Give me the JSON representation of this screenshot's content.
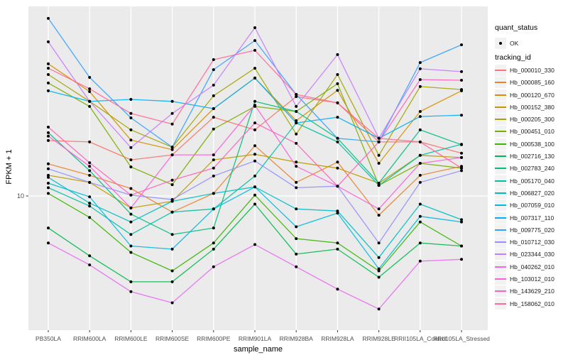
{
  "chart_data": {
    "type": "line",
    "title": "",
    "xlabel": "sample_name",
    "ylabel": "FPKM + 1",
    "y_scale": "log10",
    "y_tick_labels": [
      "10"
    ],
    "y_tick_values": [
      10
    ],
    "ylim_approx": [
      2.5,
      85
    ],
    "grid": "major-only",
    "legend_position": "right",
    "panel_bg": "#EBEBEB",
    "grid_color": "#FFFFFF",
    "point_color": "#000000",
    "categories": [
      "PB350LA",
      "RRIM600LA",
      "RRIM600LE",
      "RRIM600SE",
      "RRIM600PE",
      "RRIM901LA",
      "RRIM928BA",
      "RRIM928LA",
      "RRIM928LE",
      "RRII105LA_Control",
      "RRII105LA_Stressed"
    ],
    "series": [
      {
        "name": "Hb_000010_330",
        "color": "#F8766D",
        "values": [
          19.0,
          18.7,
          15.2,
          16.1,
          24.9,
          21.5,
          31.6,
          29.4,
          18.7,
          18.7,
          16.4
        ]
      },
      {
        "name": "Hb_000085_160",
        "color": "#EA8331",
        "values": [
          14.5,
          12.7,
          10.9,
          8.3,
          10.3,
          17.9,
          11.7,
          14.8,
          8.0,
          12.7,
          14.1
        ]
      },
      {
        "name": "Hb_000120_670",
        "color": "#D89000",
        "values": [
          46.2,
          33.5,
          19.1,
          17.1,
          27.5,
          39.2,
          23.9,
          34.0,
          14.6,
          26.6,
          33.8
        ]
      },
      {
        "name": "Hb_000152_380",
        "color": "#C09B00",
        "values": [
          12.7,
          11.7,
          8.7,
          9.4,
          15.2,
          16.2,
          14.8,
          13.8,
          11.6,
          16.0,
          15.6
        ]
      },
      {
        "name": "Hb_000205_300",
        "color": "#A3A500",
        "values": [
          40.8,
          29.9,
          21.5,
          17.6,
          31.9,
          43.9,
          20.5,
          40.8,
          16.0,
          35.5,
          34.3
        ]
      },
      {
        "name": "Hb_000451_010",
        "color": "#7CAE00",
        "values": [
          37.0,
          28.2,
          14.0,
          11.4,
          21.7,
          28.2,
          26.6,
          36.7,
          11.3,
          14.6,
          13.8
        ]
      },
      {
        "name": "Hb_000538_100",
        "color": "#39B600",
        "values": [
          10.3,
          7.8,
          5.2,
          4.2,
          5.8,
          10.1,
          6.1,
          5.8,
          4.2,
          7.4,
          5.6
        ]
      },
      {
        "name": "Hb_002716_130",
        "color": "#00BB4E",
        "values": [
          6.9,
          5.0,
          3.7,
          3.7,
          5.4,
          9.1,
          5.1,
          5.4,
          3.9,
          5.8,
          5.6
        ]
      },
      {
        "name": "Hb_002783_240",
        "color": "#00BF7D",
        "values": [
          20.8,
          13.4,
          8.1,
          6.4,
          6.9,
          29.9,
          26.6,
          19.5,
          11.6,
          21.5,
          18.1
        ]
      },
      {
        "name": "Hb_005170_040",
        "color": "#00C1A3",
        "values": [
          11.0,
          8.9,
          6.4,
          8.3,
          8.6,
          12.6,
          23.3,
          18.7,
          11.3,
          16.0,
          18.2
        ]
      },
      {
        "name": "Hb_006827_020",
        "color": "#00BFC4",
        "values": [
          12.4,
          9.2,
          7.4,
          9.4,
          10.3,
          11.1,
          8.6,
          8.4,
          4.9,
          9.1,
          7.6
        ]
      },
      {
        "name": "Hb_007059_010",
        "color": "#00BAE0",
        "values": [
          11.6,
          9.9,
          5.6,
          5.4,
          8.6,
          11.1,
          7.0,
          8.2,
          4.3,
          7.9,
          7.4
        ]
      },
      {
        "name": "Hb_007317_110",
        "color": "#00B0F6",
        "values": [
          33.8,
          29.9,
          30.6,
          29.9,
          27.5,
          39.2,
          23.3,
          24.9,
          19.5,
          25.1,
          25.5
        ]
      },
      {
        "name": "Hb_009775_020",
        "color": "#35A2FF",
        "values": [
          78.2,
          39.5,
          24.7,
          17.6,
          43.2,
          60.5,
          32.4,
          19.5,
          18.7,
          46.9,
          57.6
        ]
      },
      {
        "name": "Hb_010712_030",
        "color": "#9590FF",
        "values": [
          13.7,
          11.7,
          10.1,
          9.6,
          12.6,
          15.0,
          11.0,
          11.2,
          5.8,
          11.7,
          13.4
        ]
      },
      {
        "name": "Hb_023344_030",
        "color": "#C77CFF",
        "values": [
          59.6,
          29.9,
          17.5,
          26.0,
          36.1,
          70.2,
          28.2,
          51.4,
          19.5,
          43.6,
          42.2
        ]
      },
      {
        "name": "Hb_040262_010",
        "color": "#E76BF3",
        "values": [
          5.8,
          4.5,
          3.3,
          2.9,
          4.4,
          5.7,
          4.4,
          3.4,
          2.7,
          4.7,
          4.8
        ]
      },
      {
        "name": "Hb_103012_010",
        "color": "#FA62DB",
        "values": [
          20.0,
          14.1,
          8.7,
          16.1,
          16.1,
          28.6,
          14.1,
          11.2,
          8.6,
          14.6,
          15.6
        ]
      },
      {
        "name": "Hb_143629_210",
        "color": "#FF62BC",
        "values": [
          22.2,
          14.7,
          10.1,
          12.0,
          13.8,
          23.3,
          18.4,
          11.2,
          18.7,
          38.5,
          38.2
        ]
      },
      {
        "name": "Hb_158062_010",
        "color": "#FF6A98",
        "values": [
          43.9,
          34.6,
          26.0,
          23.0,
          48.5,
          54.0,
          32.4,
          29.4,
          19.5,
          18.7,
          13.8
        ]
      }
    ]
  },
  "legend": {
    "quant_status_title": "quant_status",
    "quant_status_items": [
      {
        "label": "OK",
        "marker_color": "#000000"
      }
    ],
    "tracking_id_title": "tracking_id"
  }
}
